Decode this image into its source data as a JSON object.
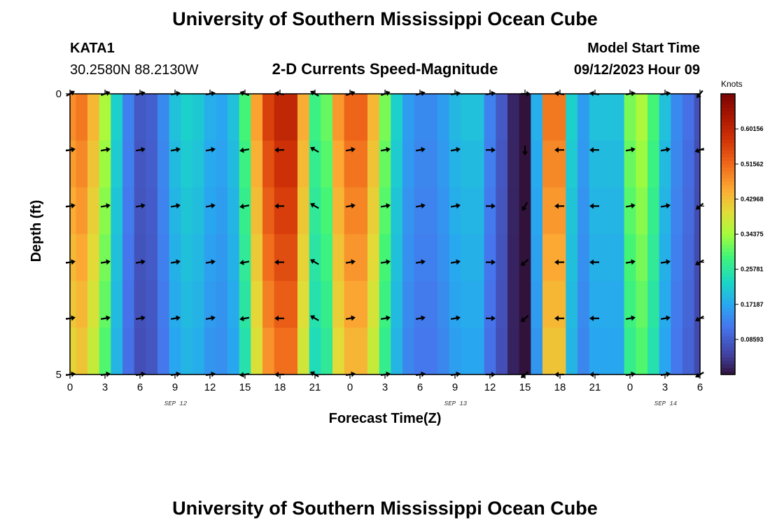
{
  "header": {
    "title": "University of Southern Mississippi Ocean Cube",
    "station": "KATA1",
    "coords": "30.2580N  88.2130W",
    "plot_title": "2-D Currents Speed-Magnitude",
    "model_label": "Model Start Time",
    "model_time": "09/12/2023 Hour 09"
  },
  "footer": {
    "title": "University of Southern Mississippi Ocean Cube"
  },
  "chart_data": {
    "type": "heatmap",
    "title": "2-D Currents Speed-Magnitude",
    "xlabel": "Forecast Time(Z)",
    "ylabel": "Depth (ft)",
    "x_tick_labels": [
      "0",
      "3",
      "6",
      "9",
      "12",
      "15",
      "18",
      "21",
      "0",
      "3",
      "6",
      "9",
      "12",
      "15",
      "18",
      "21",
      "0",
      "3",
      "6"
    ],
    "x_hours": [
      0,
      3,
      6,
      9,
      12,
      15,
      18,
      21,
      24,
      27,
      30,
      33,
      36,
      39,
      42,
      45,
      48,
      51,
      54
    ],
    "date_labels": [
      {
        "label": "SEP 12",
        "hour": 9
      },
      {
        "label": "SEP 13",
        "hour": 33
      },
      {
        "label": "SEP 14",
        "hour": 51
      }
    ],
    "y_tick_labels": [
      "0",
      "5"
    ],
    "ylim": [
      0,
      5
    ],
    "colorbar": {
      "unit": "Knots",
      "ticks": [
        "0.08593",
        "0.17187",
        "0.25781",
        "0.34375",
        "0.42968",
        "0.51562",
        "0.60156"
      ],
      "tick_values": [
        0.08593,
        0.17187,
        0.25781,
        0.34375,
        0.42968,
        0.51562,
        0.60156
      ],
      "range": [
        0,
        0.6875
      ]
    },
    "depth_rows": 6,
    "speed_hours": [
      0,
      1,
      2,
      3,
      4,
      5,
      6,
      7,
      8,
      9,
      10,
      11,
      12,
      13,
      14,
      15,
      16,
      17,
      18,
      19,
      20,
      21,
      22,
      23,
      24,
      25,
      26,
      27,
      28,
      29,
      30,
      31,
      32,
      33,
      34,
      35,
      36,
      37,
      38,
      39,
      40,
      41,
      42,
      43,
      44,
      45,
      46,
      47,
      48,
      49,
      50,
      51,
      52,
      53,
      54
    ],
    "speed_surface": [
      0.48,
      0.5,
      0.44,
      0.35,
      0.22,
      0.13,
      0.08,
      0.09,
      0.14,
      0.2,
      0.22,
      0.21,
      0.18,
      0.17,
      0.2,
      0.29,
      0.46,
      0.56,
      0.6,
      0.6,
      0.45,
      0.28,
      0.31,
      0.47,
      0.52,
      0.52,
      0.44,
      0.32,
      0.22,
      0.16,
      0.14,
      0.14,
      0.16,
      0.19,
      0.2,
      0.2,
      0.13,
      0.08,
      0.02,
      0.0,
      0.18,
      0.5,
      0.5,
      0.22,
      0.16,
      0.2,
      0.2,
      0.2,
      0.32,
      0.35,
      0.29,
      0.2,
      0.14,
      0.11,
      0.07
    ],
    "arrows": {
      "hours": [
        0,
        3,
        6,
        9,
        12,
        15,
        18,
        21,
        24,
        27,
        30,
        33,
        36,
        39,
        42,
        45,
        48,
        51,
        54
      ],
      "rows": [
        0,
        1,
        2,
        3,
        4,
        5
      ],
      "direction_deg": [
        [
          60,
          70,
          75,
          80,
          80,
          290,
          280,
          300,
          70,
          70,
          75,
          80,
          80,
          90,
          280,
          280,
          80,
          80,
          220
        ],
        [
          80,
          80,
          80,
          80,
          80,
          260,
          270,
          300,
          80,
          80,
          80,
          80,
          90,
          180,
          270,
          270,
          80,
          80,
          250
        ],
        [
          80,
          80,
          80,
          80,
          80,
          260,
          270,
          300,
          80,
          80,
          80,
          80,
          90,
          210,
          270,
          270,
          80,
          80,
          230
        ],
        [
          80,
          80,
          80,
          80,
          80,
          260,
          270,
          300,
          80,
          80,
          80,
          80,
          90,
          230,
          270,
          270,
          80,
          80,
          240
        ],
        [
          80,
          80,
          80,
          80,
          80,
          260,
          270,
          300,
          80,
          80,
          80,
          80,
          90,
          230,
          270,
          270,
          80,
          80,
          240
        ],
        [
          80,
          80,
          80,
          80,
          80,
          260,
          270,
          300,
          80,
          80,
          80,
          80,
          90,
          230,
          270,
          270,
          80,
          80,
          240
        ]
      ]
    }
  }
}
